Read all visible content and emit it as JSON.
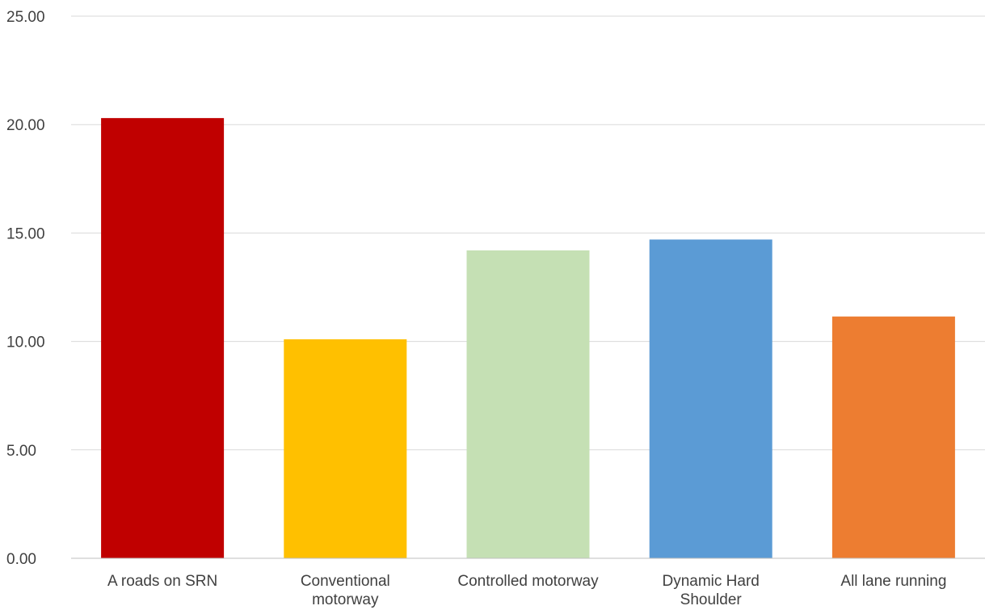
{
  "chart_data": {
    "type": "bar",
    "title": "",
    "xlabel": "",
    "ylabel": "",
    "ylim": [
      0,
      25
    ],
    "y_ticks": [
      "0.00",
      "5.00",
      "10.00",
      "15.00",
      "20.00",
      "25.00"
    ],
    "grid": true,
    "legend": "none",
    "categories": [
      [
        "A roads on SRN"
      ],
      [
        "Conventional",
        "motorway"
      ],
      [
        "Controlled motorway"
      ],
      [
        "Dynamic Hard",
        "Shoulder"
      ],
      [
        "All lane running"
      ]
    ],
    "values": [
      20.3,
      10.1,
      14.2,
      14.7,
      11.15
    ],
    "colors": [
      "#c00000",
      "#ffc000",
      "#c5e0b4",
      "#5b9bd5",
      "#ed7d31"
    ]
  }
}
